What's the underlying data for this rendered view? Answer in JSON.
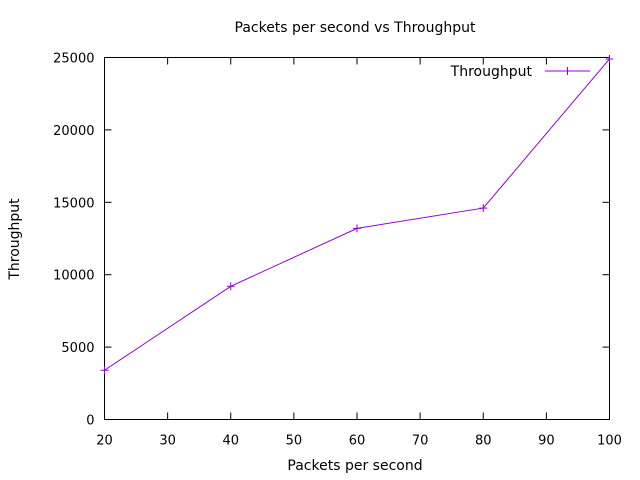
{
  "chart_data": {
    "type": "line",
    "title": "Packets per second vs Throughput",
    "xlabel": "Packets per second",
    "ylabel": "Throughput",
    "xlim": [
      20,
      100
    ],
    "ylim": [
      0,
      25000
    ],
    "x_ticks": [
      20,
      30,
      40,
      50,
      60,
      70,
      80,
      90,
      100
    ],
    "y_ticks": [
      0,
      5000,
      10000,
      15000,
      20000,
      25000
    ],
    "grid": false,
    "legend_position": "top-right",
    "series": [
      {
        "name": "Throughput",
        "color": "#9400d3",
        "marker": "plus",
        "x": [
          20,
          40,
          60,
          80,
          100
        ],
        "y": [
          3400,
          9200,
          13200,
          14600,
          24900
        ]
      }
    ]
  }
}
